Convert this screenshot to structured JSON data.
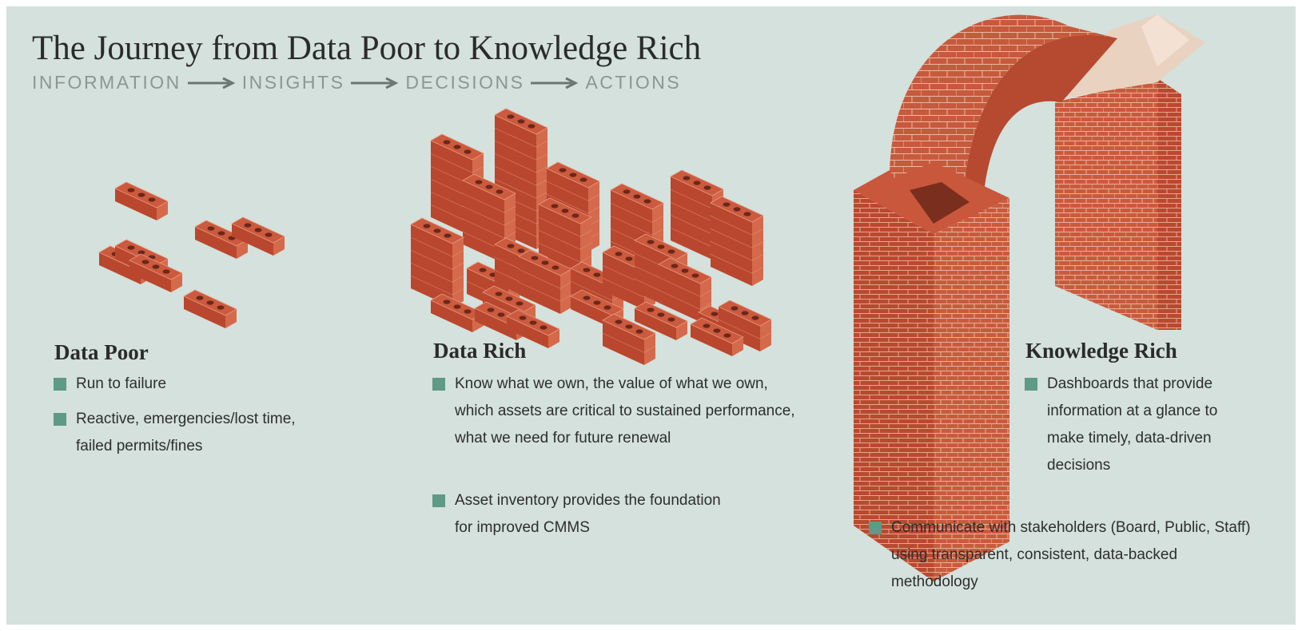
{
  "title": "The Journey from Data Poor to Knowledge Rich",
  "flow": [
    "INFORMATION",
    "INSIGHTS",
    "DECISIONS",
    "ACTIONS"
  ],
  "stages": [
    {
      "heading": "Data Poor",
      "bullets": [
        "Run to failure",
        "Reactive, emergencies/lost time, failed permits/fines"
      ]
    },
    {
      "heading": "Data Rich",
      "bullets": [
        "Know what we own, the value of what we own, which assets are critical to sustained performance, what we need for future renewal",
        "Asset inventory provides the foundation for improved CMMS"
      ]
    },
    {
      "heading": "Knowledge Rich",
      "bullets": [
        "Dashboards that provide information at a glance to make timely, data-driven decisions",
        "Communicate with stakeholders (Board, Public, Staff) using transparent, consistent, data-backed methodology"
      ]
    }
  ]
}
